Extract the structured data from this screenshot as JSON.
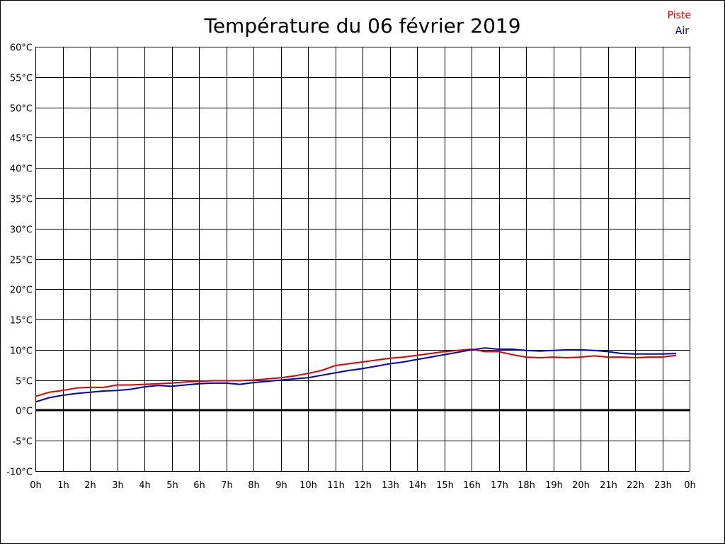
{
  "chart_data": {
    "type": "line",
    "title": "Température du 06 février 2019",
    "xlabel": "",
    "ylabel": "",
    "grid": true,
    "legend_position": "top-right",
    "x_ticks": [
      "0h",
      "1h",
      "2h",
      "3h",
      "4h",
      "5h",
      "6h",
      "7h",
      "8h",
      "9h",
      "10h",
      "11h",
      "12h",
      "13h",
      "14h",
      "15h",
      "16h",
      "17h",
      "18h",
      "19h",
      "20h",
      "21h",
      "22h",
      "23h",
      "0h"
    ],
    "xlim": [
      0,
      24
    ],
    "y_ticks": [
      "60°C",
      "55°C",
      "50°C",
      "45°C",
      "40°C",
      "35°C",
      "30°C",
      "25°C",
      "20°C",
      "15°C",
      "10°C",
      "5°C",
      "0°C",
      "-5°C",
      "-10°C"
    ],
    "ylim": [
      -10,
      60
    ],
    "y_tick_values": [
      60,
      55,
      50,
      45,
      40,
      35,
      30,
      25,
      20,
      15,
      10,
      5,
      0,
      -5,
      -10
    ],
    "reference_line": 0,
    "colors": {
      "piste": "#e00000",
      "air": "#0000c8",
      "axis": "#000000"
    },
    "series": [
      {
        "name": "Piste",
        "x": [
          0,
          0.5,
          1,
          1.5,
          2,
          2.5,
          3,
          3.5,
          4,
          4.5,
          5,
          5.5,
          6,
          6.5,
          7,
          7.5,
          8,
          8.5,
          9,
          9.5,
          10,
          10.5,
          11,
          11.5,
          12,
          12.5,
          13,
          13.5,
          14,
          14.5,
          15,
          15.5,
          16,
          16.5,
          17,
          17.5,
          18,
          18.5,
          19,
          19.5,
          20,
          20.5,
          21,
          21.5,
          22,
          22.5,
          23,
          23.5
        ],
        "values": [
          2.3,
          3.0,
          3.3,
          3.7,
          3.8,
          3.8,
          4.2,
          4.2,
          4.3,
          4.4,
          4.5,
          4.7,
          4.8,
          4.9,
          4.9,
          4.9,
          5.0,
          5.2,
          5.4,
          5.7,
          6.1,
          6.6,
          7.4,
          7.7,
          8.0,
          8.3,
          8.6,
          8.8,
          9.1,
          9.4,
          9.7,
          9.9,
          10.1,
          9.7,
          9.7,
          9.2,
          8.8,
          8.7,
          8.8,
          8.7,
          8.8,
          9.0,
          8.8,
          8.8,
          8.7,
          8.8,
          8.8,
          9.1
        ]
      },
      {
        "name": "Air",
        "x": [
          0,
          0.5,
          1,
          1.5,
          2,
          2.5,
          3,
          3.5,
          4,
          4.5,
          5,
          5.5,
          6,
          6.5,
          7,
          7.5,
          8,
          8.5,
          9,
          9.5,
          10,
          10.5,
          11,
          11.5,
          12,
          12.5,
          13,
          13.5,
          14,
          14.5,
          15,
          15.5,
          16,
          16.5,
          17,
          17.5,
          18,
          18.5,
          19,
          19.5,
          20,
          20.5,
          21,
          21.5,
          22,
          22.5,
          23,
          23.5
        ],
        "values": [
          1.4,
          2.1,
          2.5,
          2.8,
          3.0,
          3.2,
          3.3,
          3.5,
          3.9,
          4.1,
          4.0,
          4.2,
          4.4,
          4.5,
          4.5,
          4.3,
          4.6,
          4.8,
          5.0,
          5.2,
          5.4,
          5.8,
          6.2,
          6.6,
          6.9,
          7.3,
          7.7,
          8.0,
          8.4,
          8.8,
          9.2,
          9.6,
          10.0,
          10.3,
          10.1,
          10.1,
          9.9,
          9.8,
          9.9,
          10.0,
          10.0,
          9.9,
          9.7,
          9.4,
          9.3,
          9.3,
          9.3,
          9.4
        ]
      }
    ]
  }
}
